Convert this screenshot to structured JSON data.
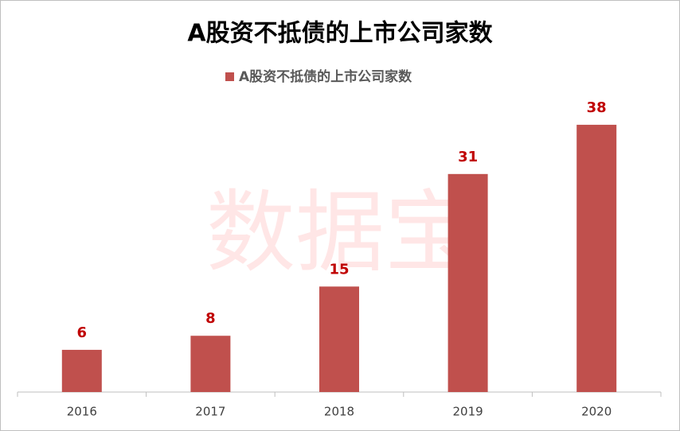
{
  "chart_data": {
    "type": "bar",
    "title": "A股资不抵债的上市公司家数",
    "series": [
      {
        "name": "A股资不抵债的上市公司家数",
        "color": "#c0504d",
        "values": [
          6,
          8,
          15,
          31,
          38
        ]
      }
    ],
    "categories": [
      "2016",
      "2017",
      "2018",
      "2019",
      "2020"
    ],
    "ylim": [
      0,
      45
    ],
    "watermark": "数据宝",
    "label_color": "#c00000"
  }
}
